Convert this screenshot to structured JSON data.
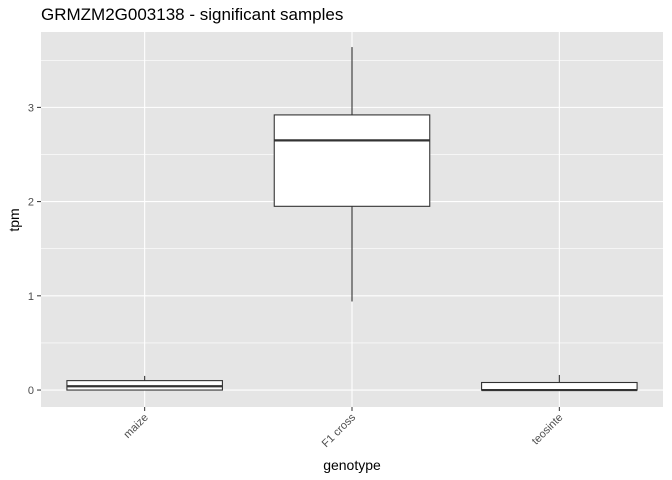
{
  "chart_data": {
    "type": "boxplot",
    "title": "GRMZM2G003138 - significant samples",
    "xlabel": "genotype",
    "ylabel": "tpm",
    "categories": [
      "maize",
      "F1 cross",
      "teosinte"
    ],
    "boxes": [
      {
        "category": "maize",
        "min": 0.0,
        "q1": 0.0,
        "median": 0.04,
        "q3": 0.1,
        "max": 0.15
      },
      {
        "category": "F1 cross",
        "min": 0.94,
        "q1": 1.95,
        "median": 2.65,
        "q3": 2.92,
        "max": 3.64
      },
      {
        "category": "teosinte",
        "min": 0.0,
        "q1": 0.0,
        "median": 0.0,
        "q3": 0.08,
        "max": 0.16
      }
    ],
    "yticks": [
      0,
      1,
      2,
      3
    ],
    "ylim": [
      -0.18,
      3.8
    ],
    "grid": true,
    "legend": "none",
    "colors": {
      "panel": "#e5e5e5",
      "grid": "#ffffff",
      "box_fill": "#ffffff",
      "box_stroke": "#333333"
    }
  }
}
